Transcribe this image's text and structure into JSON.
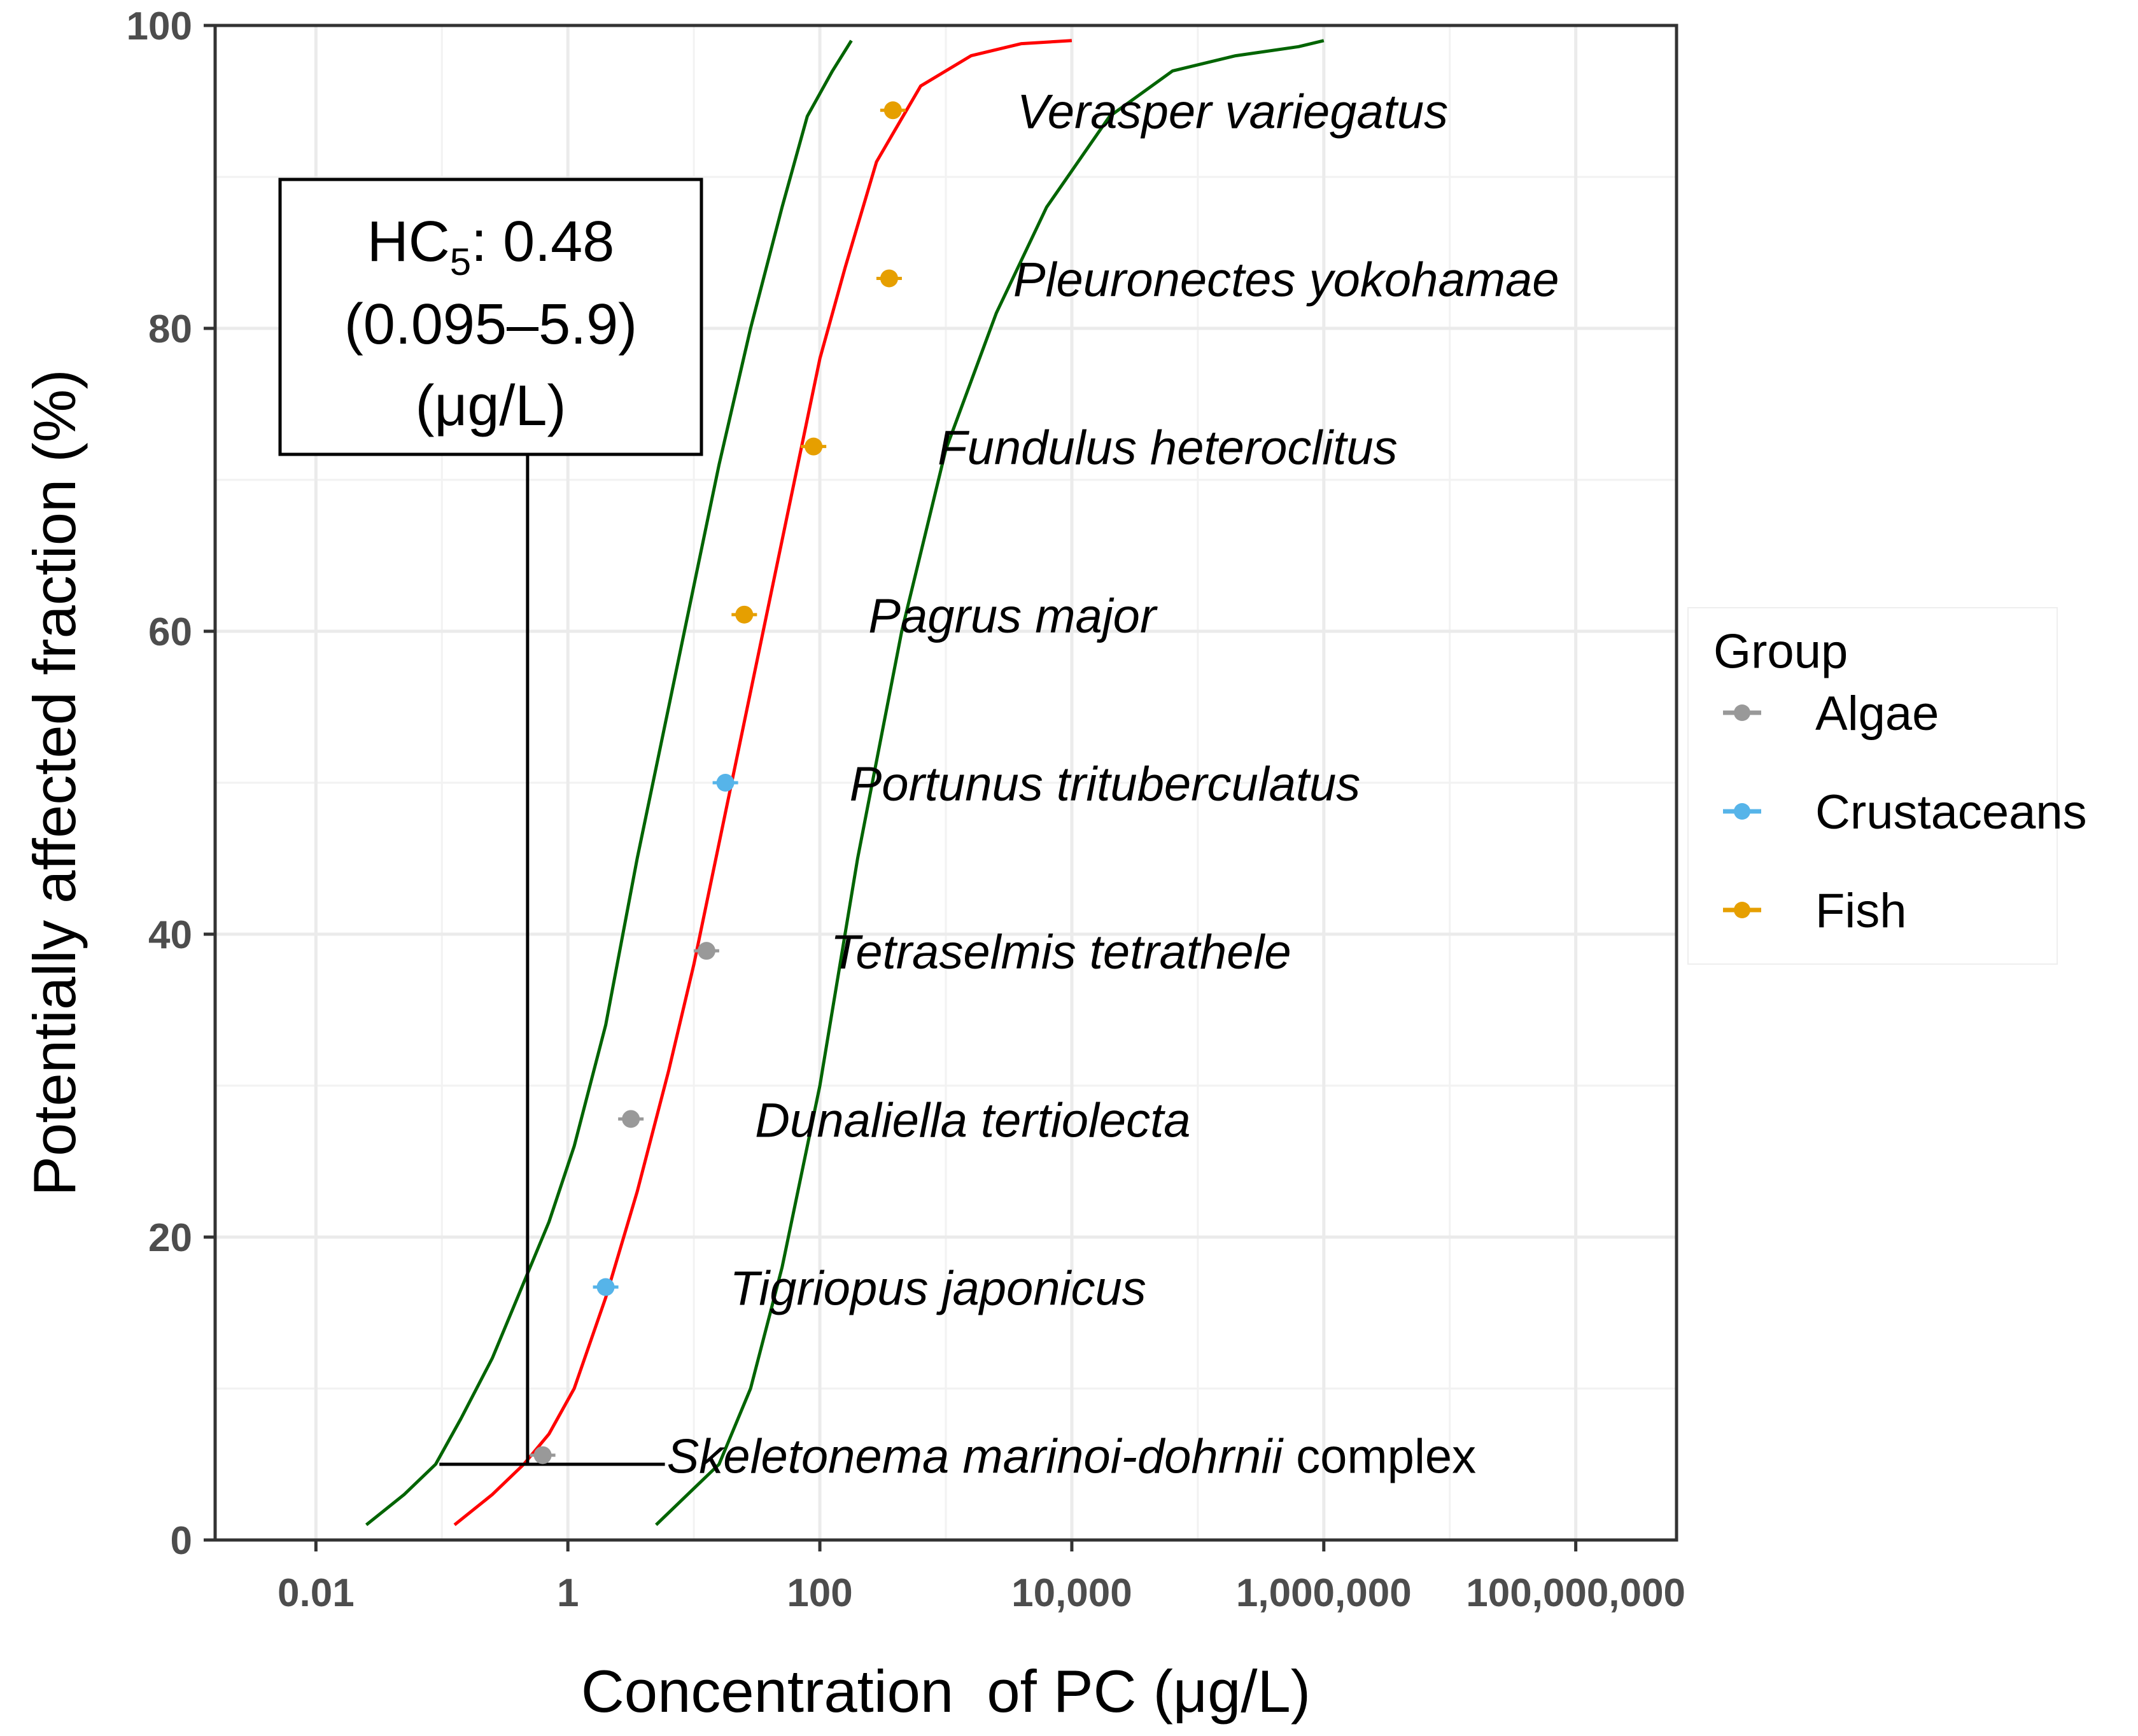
{
  "chart_data": {
    "type": "scatter",
    "title": "",
    "xlabel": "Concentration  of PC (μg/L)",
    "ylabel": "Potentially affected fraction (%)",
    "x_scale": "log10",
    "xlim_log10": [
      -2.8,
      8.8
    ],
    "ylim": [
      0,
      100
    ],
    "x_ticks": [
      {
        "log10": -2,
        "label": "0.01"
      },
      {
        "log10": 0,
        "label": "1"
      },
      {
        "log10": 2,
        "label": "100"
      },
      {
        "log10": 4,
        "label": "10,000"
      },
      {
        "log10": 6,
        "label": "1,000,000"
      },
      {
        "log10": 8,
        "label": "100,000,000"
      }
    ],
    "y_ticks": [
      {
        "value": 0,
        "label": "0"
      },
      {
        "value": 20,
        "label": "20"
      },
      {
        "value": 40,
        "label": "40"
      },
      {
        "value": 60,
        "label": "60"
      },
      {
        "value": 80,
        "label": "80"
      },
      {
        "value": 100,
        "label": "100"
      }
    ],
    "grid": true,
    "points": [
      {
        "species": "Skeletonema marinoi-dohrnii",
        "suffix": " complex",
        "group": "Algae",
        "log10_conc": -0.2,
        "paf": 5.6
      },
      {
        "species": "Tigriopus japonicus",
        "suffix": "",
        "group": "Crustaceans",
        "log10_conc": 0.3,
        "paf": 16.7
      },
      {
        "species": "Dunaliella tertiolecta",
        "suffix": "",
        "group": "Algae",
        "log10_conc": 0.5,
        "paf": 27.8
      },
      {
        "species": "Tetraselmis tetrathele",
        "suffix": "",
        "group": "Algae",
        "log10_conc": 1.1,
        "paf": 38.9
      },
      {
        "species": "Portunus trituberculatus",
        "suffix": "",
        "group": "Crustaceans",
        "log10_conc": 1.25,
        "paf": 50.0
      },
      {
        "species": "Pagrus major",
        "suffix": "",
        "group": "Fish",
        "log10_conc": 1.4,
        "paf": 61.1
      },
      {
        "species": "Fundulus heteroclitus",
        "suffix": "",
        "group": "Fish",
        "log10_conc": 1.95,
        "paf": 72.2
      },
      {
        "species": "Pleuronectes yokohamae",
        "suffix": "",
        "group": "Fish",
        "log10_conc": 2.55,
        "paf": 83.3
      },
      {
        "species": "Verasper variegatus",
        "suffix": "",
        "group": "Fish",
        "log10_conc": 2.58,
        "paf": 94.4
      }
    ],
    "curves": [
      {
        "name": "fitted",
        "color": "#ff0000",
        "log10_conc": [
          -0.9,
          -0.6,
          -0.35,
          -0.15,
          0.05,
          0.3,
          0.55,
          0.8,
          1.0,
          1.2,
          1.4,
          1.6,
          1.8,
          2.0,
          2.2,
          2.45,
          2.8,
          3.2,
          3.6,
          4.0
        ],
        "paf": [
          1,
          3,
          5,
          7,
          10,
          16,
          23,
          31,
          38,
          46,
          54,
          62,
          70,
          78,
          84,
          91,
          96,
          98,
          98.8,
          99
        ]
      },
      {
        "name": "upper-ci",
        "color": "#006400",
        "log10_conc": [
          -1.6,
          -1.3,
          -1.05,
          -0.85,
          -0.6,
          -0.35,
          -0.15,
          0.05,
          0.3,
          0.55,
          0.8,
          1.0,
          1.2,
          1.45,
          1.7,
          1.9,
          2.1,
          2.25
        ],
        "paf": [
          1,
          3,
          5,
          8,
          12,
          17,
          21,
          26,
          34,
          45,
          55,
          63,
          71,
          80,
          88,
          94,
          97,
          99
        ]
      },
      {
        "name": "lower-ci",
        "color": "#006400",
        "log10_conc": [
          0.7,
          0.95,
          1.2,
          1.45,
          1.7,
          2.0,
          2.3,
          2.65,
          3.0,
          3.4,
          3.8,
          4.3,
          4.8,
          5.3,
          5.8,
          6.0
        ],
        "paf": [
          1,
          3,
          5,
          10,
          18,
          30,
          45,
          60,
          72,
          81,
          88,
          94,
          97,
          98,
          98.6,
          99
        ]
      }
    ],
    "hc5": {
      "log10_value": -0.32,
      "ci_log10": [
        -1.02,
        0.77
      ],
      "paf": 5,
      "label_line1_prefix": "HC",
      "label_line1_sub": "5",
      "label_line1_suffix": ": 0.48",
      "label_line2": "(0.095–5.9)",
      "label_line3": "(μg/L)"
    },
    "legend": {
      "title": "Group",
      "placement": "right",
      "entries": [
        {
          "label": "Algae",
          "color": "#999999"
        },
        {
          "label": "Crustaceans",
          "color": "#56B4E9"
        },
        {
          "label": "Fish",
          "color": "#E69F00"
        }
      ]
    }
  }
}
